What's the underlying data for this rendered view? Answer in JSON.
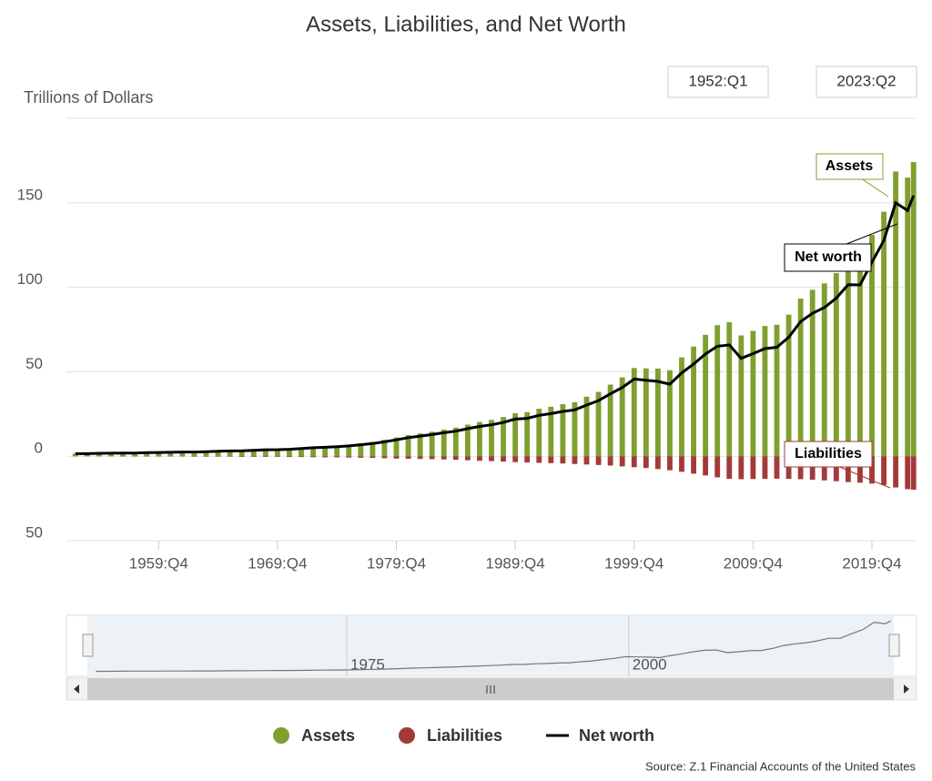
{
  "chart_data": {
    "type": "bar-line",
    "title": "Assets, Liabilities, and Net Worth",
    "y_label": "Trillions of Dollars",
    "range_start": "1952:Q1",
    "range_end": "2023:Q2",
    "source": "Source: Z.1 Financial Accounts of the United States",
    "annotations": [
      "Assets",
      "Net worth",
      "Liabilities"
    ],
    "x": [
      1952.75,
      1953.75,
      1954.75,
      1955.75,
      1956.75,
      1957.75,
      1958.75,
      1959.75,
      1960.75,
      1961.75,
      1962.75,
      1963.75,
      1964.75,
      1965.75,
      1966.75,
      1967.75,
      1968.75,
      1969.75,
      1970.75,
      1971.75,
      1972.75,
      1973.75,
      1974.75,
      1975.75,
      1976.75,
      1977.75,
      1978.75,
      1979.75,
      1980.75,
      1981.75,
      1982.75,
      1983.75,
      1984.75,
      1985.75,
      1986.75,
      1987.75,
      1988.75,
      1989.75,
      1990.75,
      1991.75,
      1992.75,
      1993.75,
      1994.75,
      1995.75,
      1996.75,
      1997.75,
      1998.75,
      1999.75,
      2000.75,
      2001.75,
      2002.75,
      2003.75,
      2004.75,
      2005.75,
      2006.75,
      2007.75,
      2008.75,
      2009.75,
      2010.75,
      2011.75,
      2012.75,
      2013.75,
      2014.75,
      2015.75,
      2016.75,
      2017.75,
      2018.75,
      2019.75,
      2020.75,
      2021.75,
      2022.75,
      2023.25
    ],
    "series": [
      {
        "name": "Assets",
        "color": "#7f9f2f",
        "kind": "bar",
        "values": [
          1.6,
          1.6,
          1.8,
          1.9,
          2.1,
          2.1,
          2.3,
          2.4,
          2.5,
          2.7,
          2.8,
          3.0,
          3.2,
          3.4,
          3.6,
          3.9,
          4.2,
          4.3,
          4.6,
          5.0,
          5.6,
          6.0,
          6.3,
          6.9,
          7.7,
          8.5,
          9.7,
          11.1,
          12.5,
          13.5,
          14.5,
          15.8,
          16.9,
          18.7,
          20.3,
          21.5,
          23.2,
          25.5,
          26.1,
          28.1,
          29.3,
          30.8,
          32.0,
          35.2,
          38.1,
          42.4,
          46.7,
          52.2,
          52.0,
          51.9,
          50.9,
          58.5,
          64.9,
          71.9,
          77.6,
          79.3,
          71.5,
          74.2,
          77.1,
          77.8,
          83.8,
          93.3,
          98.5,
          102.3,
          108.4,
          116.8,
          117.1,
          131.0,
          144.7,
          168.5,
          164.9,
          174.1
        ]
      },
      {
        "name": "Liabilities",
        "color": "#a33a3a",
        "kind": "bar",
        "values": [
          -0.1,
          -0.1,
          -0.1,
          -0.1,
          -0.2,
          -0.2,
          -0.2,
          -0.2,
          -0.2,
          -0.2,
          -0.3,
          -0.3,
          -0.3,
          -0.3,
          -0.4,
          -0.4,
          -0.4,
          -0.4,
          -0.5,
          -0.5,
          -0.6,
          -0.7,
          -0.7,
          -0.8,
          -0.9,
          -1.0,
          -1.2,
          -1.4,
          -1.5,
          -1.6,
          -1.7,
          -1.9,
          -2.1,
          -2.4,
          -2.7,
          -2.9,
          -3.2,
          -3.5,
          -3.7,
          -3.9,
          -4.1,
          -4.3,
          -4.6,
          -4.9,
          -5.2,
          -5.5,
          -6.0,
          -6.5,
          -7.0,
          -7.6,
          -8.3,
          -9.2,
          -10.3,
          -11.4,
          -12.5,
          -13.4,
          -13.6,
          -13.5,
          -13.4,
          -13.3,
          -13.4,
          -13.6,
          -13.9,
          -14.3,
          -14.8,
          -15.3,
          -15.7,
          -16.2,
          -17.0,
          -18.5,
          -19.5,
          -19.8
        ]
      },
      {
        "name": "Net worth",
        "color": "#000000",
        "kind": "line",
        "values": [
          1.5,
          1.5,
          1.7,
          1.8,
          1.9,
          1.9,
          2.1,
          2.2,
          2.3,
          2.5,
          2.5,
          2.7,
          2.9,
          3.1,
          3.2,
          3.5,
          3.8,
          3.9,
          4.1,
          4.5,
          5.0,
          5.3,
          5.6,
          6.1,
          6.8,
          7.5,
          8.5,
          9.7,
          11.0,
          11.9,
          12.8,
          13.9,
          14.8,
          16.3,
          17.6,
          18.6,
          20.0,
          22.0,
          22.4,
          24.2,
          25.2,
          26.5,
          27.4,
          30.3,
          32.9,
          36.9,
          40.7,
          45.7,
          45.0,
          44.3,
          42.6,
          49.3,
          54.6,
          60.5,
          65.1,
          65.9,
          57.9,
          60.7,
          63.7,
          64.5,
          70.4,
          79.7,
          84.6,
          88.0,
          93.6,
          101.5,
          101.4,
          114.8,
          127.7,
          150.0,
          145.4,
          154.3
        ]
      }
    ],
    "xlim": [
      1952,
      2023.5
    ],
    "xticks": [
      {
        "value": 1959.75,
        "label": "1959:Q4"
      },
      {
        "value": 1969.75,
        "label": "1969:Q4"
      },
      {
        "value": 1979.75,
        "label": "1979:Q4"
      },
      {
        "value": 1989.75,
        "label": "1989:Q4"
      },
      {
        "value": 1999.75,
        "label": "1999:Q4"
      },
      {
        "value": 2009.75,
        "label": "2009:Q4"
      },
      {
        "value": 2019.75,
        "label": "2019:Q4"
      }
    ],
    "ylim": [
      -50,
      200
    ],
    "yticks": [
      {
        "value": -50,
        "label": "50"
      },
      0,
      50,
      100,
      150
    ],
    "navigator_ticks": [
      1975,
      2000
    ],
    "grid": true
  }
}
